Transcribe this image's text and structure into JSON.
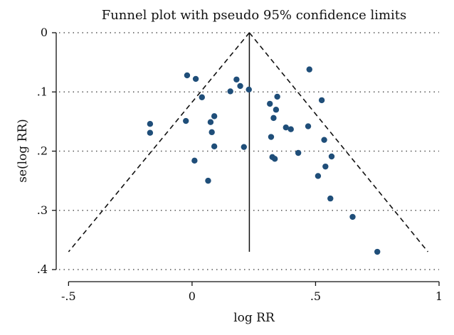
{
  "chart_data": {
    "type": "scatter",
    "title": "Funnel plot with pseudo 95% confidence limits",
    "xlabel": "log RR",
    "ylabel": "se(log RR)",
    "xlim": [
      -0.55,
      1.0
    ],
    "ylim": [
      0,
      0.4
    ],
    "y_inverted": true,
    "x_ticks": [
      {
        "value": -0.5,
        "label": "-.5"
      },
      {
        "value": 0,
        "label": "0"
      },
      {
        "value": 0.5,
        "label": ".5"
      },
      {
        "value": 1,
        "label": "1"
      }
    ],
    "y_ticks": [
      {
        "value": 0,
        "label": "0"
      },
      {
        "value": 0.1,
        "label": ".1"
      },
      {
        "value": 0.2,
        "label": ".2"
      },
      {
        "value": 0.3,
        "label": ".3"
      },
      {
        "value": 0.4,
        "label": ".4"
      }
    ],
    "grid": "horizontal dotted at y ticks",
    "pooled_estimate": 0.232,
    "pooled_line_se_range": [
      0,
      0.37
    ],
    "confidence_limits": {
      "apex": [
        0.232,
        0
      ],
      "left_end": [
        -0.5,
        0.37
      ],
      "right_end": [
        0.955,
        0.37
      ]
    },
    "points": [
      {
        "x": -0.17,
        "y": 0.154
      },
      {
        "x": -0.17,
        "y": 0.169
      },
      {
        "x": -0.02,
        "y": 0.072
      },
      {
        "x": -0.025,
        "y": 0.149
      },
      {
        "x": 0.015,
        "y": 0.078
      },
      {
        "x": 0.01,
        "y": 0.216
      },
      {
        "x": 0.04,
        "y": 0.109
      },
      {
        "x": 0.065,
        "y": 0.25
      },
      {
        "x": 0.075,
        "y": 0.151
      },
      {
        "x": 0.08,
        "y": 0.168
      },
      {
        "x": 0.09,
        "y": 0.141
      },
      {
        "x": 0.09,
        "y": 0.192
      },
      {
        "x": 0.155,
        "y": 0.099
      },
      {
        "x": 0.18,
        "y": 0.079
      },
      {
        "x": 0.195,
        "y": 0.09
      },
      {
        "x": 0.21,
        "y": 0.193
      },
      {
        "x": 0.23,
        "y": 0.096
      },
      {
        "x": 0.315,
        "y": 0.12
      },
      {
        "x": 0.32,
        "y": 0.176
      },
      {
        "x": 0.325,
        "y": 0.21
      },
      {
        "x": 0.33,
        "y": 0.144
      },
      {
        "x": 0.335,
        "y": 0.213
      },
      {
        "x": 0.34,
        "y": 0.13
      },
      {
        "x": 0.345,
        "y": 0.108
      },
      {
        "x": 0.38,
        "y": 0.16
      },
      {
        "x": 0.4,
        "y": 0.163
      },
      {
        "x": 0.43,
        "y": 0.203
      },
      {
        "x": 0.47,
        "y": 0.158
      },
      {
        "x": 0.475,
        "y": 0.062
      },
      {
        "x": 0.51,
        "y": 0.242
      },
      {
        "x": 0.525,
        "y": 0.114
      },
      {
        "x": 0.535,
        "y": 0.181
      },
      {
        "x": 0.54,
        "y": 0.226
      },
      {
        "x": 0.56,
        "y": 0.28
      },
      {
        "x": 0.565,
        "y": 0.209
      },
      {
        "x": 0.65,
        "y": 0.311
      },
      {
        "x": 0.75,
        "y": 0.37
      }
    ]
  }
}
